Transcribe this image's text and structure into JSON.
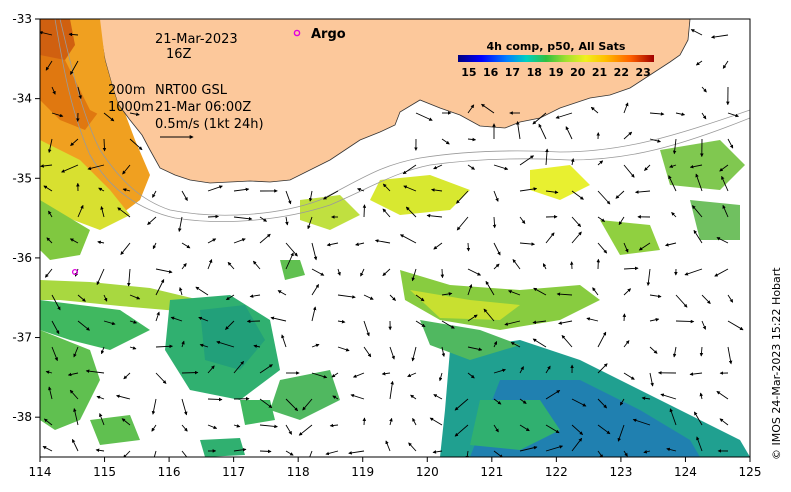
{
  "map": {
    "date": "21-Mar-2023",
    "hour": "16Z",
    "argo_label": "Argo",
    "isobaths": {
      "row1_depth": "200m",
      "row1_product": "NRT00 GSL",
      "row2_depth": "1000m",
      "row2_time": "21-Mar 06:00Z"
    },
    "arrow_scale_label": "0.5m/s (1kt 24h)",
    "colorbar": {
      "title": "4h comp, p50, All Sats",
      "ticks": [
        "15",
        "16",
        "17",
        "18",
        "19",
        "20",
        "21",
        "22",
        "23"
      ],
      "min": 15,
      "max": 24
    },
    "x_axis": {
      "ticks": [
        "114",
        "115",
        "116",
        "117",
        "118",
        "119",
        "120",
        "121",
        "122",
        "123",
        "124",
        "125"
      ],
      "range": [
        114,
        125
      ]
    },
    "y_axis": {
      "ticks": [
        "-33",
        "-34",
        "-35",
        "-36",
        "-37",
        "-38"
      ],
      "range": [
        -38.5,
        -33
      ]
    },
    "credit": "© IMOS 24-Mar-2023 15:22 Hobart",
    "colors": {
      "land": "#fcc89b",
      "coast": "#333333",
      "isobath": "#9a9a9a",
      "argo": "#e000e0"
    }
  }
}
